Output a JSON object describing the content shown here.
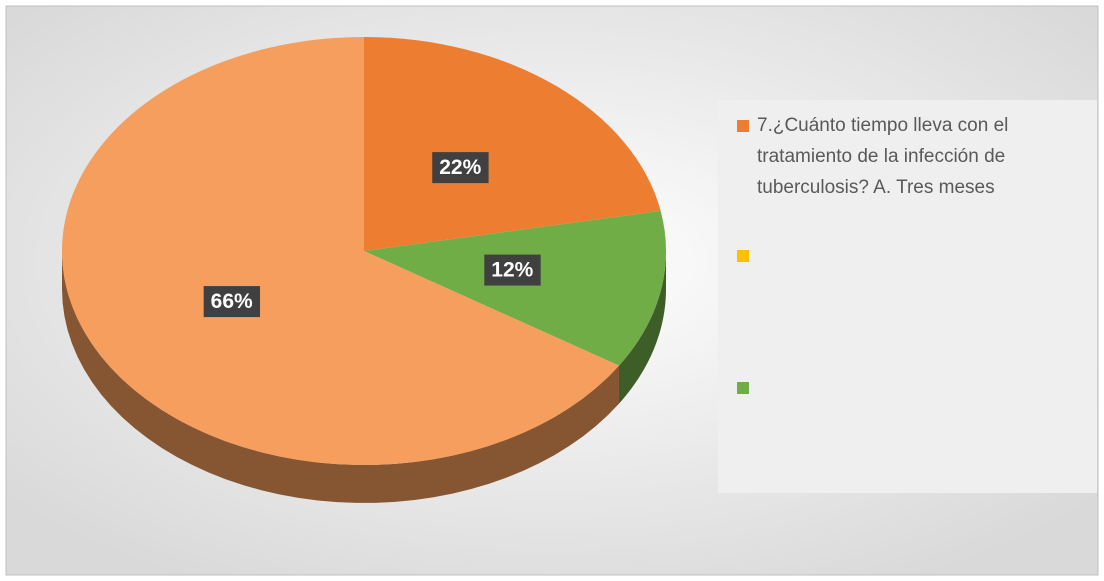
{
  "chart_data": {
    "type": "pie3d",
    "categories": [
      "7.¿Cuánto tiempo lleva con el tratamiento de la infección de tuberculosis? A. Tres meses",
      null,
      null
    ],
    "values": [
      22,
      12,
      66
    ],
    "value_labels": [
      "22%",
      "12%",
      "66%"
    ],
    "colors": [
      "#ED7D31",
      "#70AD47",
      "#F59E5E"
    ],
    "legend_colors": [
      "#ED7D31",
      "#FFC000",
      "#70AD47"
    ],
    "legend": "right"
  }
}
